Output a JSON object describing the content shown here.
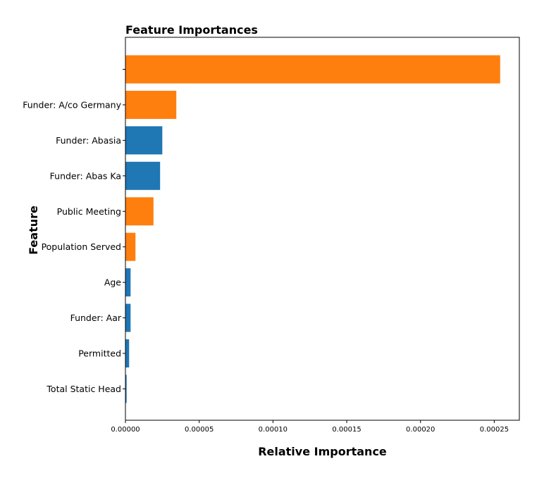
{
  "chart_data": {
    "type": "bar",
    "orientation": "horizontal",
    "title": "Feature Importances",
    "xlabel": "Relative Importance",
    "ylabel": "Feature",
    "categories": [
      "",
      "Funder: A/co Germany",
      "Funder: Abasia",
      "Funder: Abas Ka",
      "Public Meeting",
      "Population Served",
      "Age",
      "Funder: Aar",
      "Permitted",
      "Total Static Head"
    ],
    "values": [
      0.000254,
      3.45e-05,
      2.5e-05,
      2.35e-05,
      1.9e-05,
      6.8e-06,
      3.5e-06,
      3.5e-06,
      2.5e-06,
      8e-07
    ],
    "bar_colors": [
      "#ff7f0e",
      "#ff7f0e",
      "#1f77b4",
      "#1f77b4",
      "#ff7f0e",
      "#ff7f0e",
      "#1f77b4",
      "#1f77b4",
      "#1f77b4",
      "#1f77b4"
    ],
    "xlim": [
      0,
      0.000267
    ],
    "xticks": [
      0,
      5e-05,
      0.0001,
      0.00015,
      0.0002,
      0.00025
    ],
    "xtick_labels": [
      "0.00000",
      "0.00005",
      "0.00010",
      "0.00015",
      "0.00020",
      "0.00025"
    ],
    "grid": false,
    "legend": "none"
  }
}
